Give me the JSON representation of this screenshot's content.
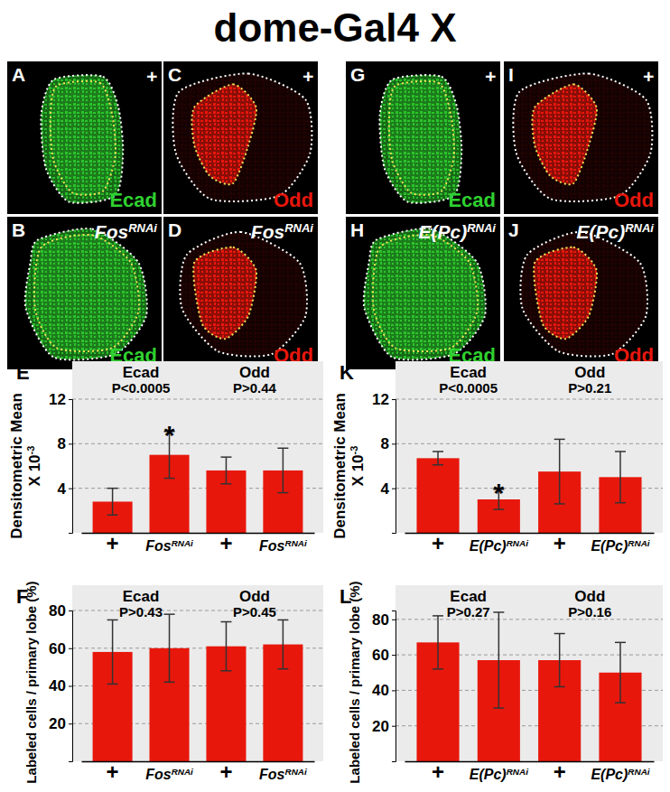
{
  "title": "dome-Gal4 X",
  "image_panels": [
    {
      "panel": "A",
      "genotype": "+",
      "stain": "Ecad",
      "color": "#2fd12f"
    },
    {
      "panel": "B",
      "genotype": "FosRNAi",
      "stain": "Ecad",
      "color": "#2fd12f"
    },
    {
      "panel": "C",
      "genotype": "+",
      "stain": "Odd",
      "color": "#e8170c"
    },
    {
      "panel": "D",
      "genotype": "FosRNAi",
      "stain": "Odd",
      "color": "#e8170c"
    },
    {
      "panel": "G",
      "genotype": "+",
      "stain": "Ecad",
      "color": "#2fd12f"
    },
    {
      "panel": "H",
      "genotype": "E(Pc)RNAi",
      "stain": "Ecad",
      "color": "#2fd12f"
    },
    {
      "panel": "I",
      "genotype": "+",
      "stain": "Odd",
      "color": "#e8170c"
    },
    {
      "panel": "J",
      "genotype": "E(Pc)RNAi",
      "stain": "Odd",
      "color": "#e8170c"
    }
  ],
  "chart_data": [
    {
      "type": "bar",
      "panel": "E",
      "categories": [
        "+",
        "FosRNAi",
        "+",
        "FosRNAi"
      ],
      "values": [
        2.8,
        7.0,
        5.6,
        5.6
      ],
      "errors": [
        1.2,
        2.1,
        1.2,
        2.0
      ],
      "color": "#e8170c",
      "ylabel": [
        "Densitometric Mean",
        "X 10",
        "-3"
      ],
      "ylim": [
        0,
        12
      ],
      "yticks": [
        4,
        8,
        12
      ],
      "grid": true,
      "groups": [
        {
          "label": "Ecad",
          "p": "P<0.0005"
        },
        {
          "label": "Odd",
          "p": "P>0.44"
        }
      ],
      "markers": [
        {
          "index": 1,
          "text": "*"
        }
      ]
    },
    {
      "type": "bar",
      "panel": "F",
      "categories": [
        "+",
        "FosRNAi",
        "+",
        "FosRNAi"
      ],
      "values": [
        58,
        60,
        61,
        62
      ],
      "errors": [
        17,
        18,
        13,
        13
      ],
      "color": "#e8170c",
      "ylabel": "Labeled cells / primary lobe (%)",
      "ylim": [
        0,
        80
      ],
      "yticks": [
        20,
        40,
        60,
        80
      ],
      "grid": true,
      "groups": [
        {
          "label": "Ecad",
          "p": "P>0.43"
        },
        {
          "label": "Odd",
          "p": "P>0.45"
        }
      ]
    },
    {
      "type": "bar",
      "panel": "K",
      "categories": [
        "+",
        "E(Pc)RNAi",
        "+",
        "E(Pc)RNAi"
      ],
      "values": [
        6.7,
        3.0,
        5.5,
        5.0
      ],
      "errors": [
        0.6,
        0.9,
        2.9,
        2.3
      ],
      "color": "#e8170c",
      "ylabel": [
        "Densitometric Mean",
        "X 10",
        "-3"
      ],
      "ylim": [
        0,
        12
      ],
      "yticks": [
        4,
        8,
        12
      ],
      "grid": true,
      "groups": [
        {
          "label": "Ecad",
          "p": "P<0.0005"
        },
        {
          "label": "Odd",
          "p": "P>0.21"
        }
      ],
      "markers": [
        {
          "index": 1,
          "text": "*"
        }
      ]
    },
    {
      "type": "bar",
      "panel": "L",
      "categories": [
        "+",
        "E(Pc)RNAi",
        "+",
        "E(Pc)RNAi"
      ],
      "values": [
        67,
        57,
        57,
        50
      ],
      "errors": [
        15,
        27,
        15,
        17
      ],
      "color": "#e8170c",
      "ylabel": "Labeled cells / primary lobe (%)",
      "ylim": [
        0,
        85
      ],
      "yticks": [
        20,
        40,
        60,
        80
      ],
      "grid": true,
      "groups": [
        {
          "label": "Ecad",
          "p": "P>0.27"
        },
        {
          "label": "Odd",
          "p": "P>0.16"
        }
      ]
    }
  ]
}
